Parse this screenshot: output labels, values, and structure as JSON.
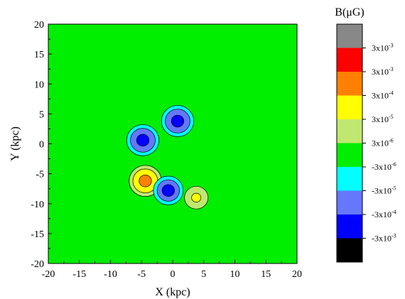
{
  "chart_data": {
    "type": "contour",
    "xlabel": "X (kpc)",
    "ylabel": "Y (kpc)",
    "xlim": [
      -20,
      20
    ],
    "ylim": [
      -20,
      20
    ],
    "xticks": [
      -20,
      -15,
      -10,
      -5,
      0,
      5,
      10,
      15,
      20
    ],
    "yticks": [
      -20,
      -15,
      -10,
      -5,
      0,
      5,
      10,
      15,
      20
    ],
    "background_color": "#00ee00",
    "colorbar": {
      "title": "B(μG)",
      "title_base": "B(",
      "title_mu": "μ",
      "title_rest": "G)",
      "levels": [
        {
          "color": "#888888"
        },
        {
          "color": "#ff0000",
          "label": "3x10-3"
        },
        {
          "color": "#ff8000",
          "label": "3x10-3"
        },
        {
          "color": "#ffff00",
          "label": "3x10-4"
        },
        {
          "color": "#c0e870",
          "label": "3x10-5"
        },
        {
          "color": "#00ee00",
          "label": "3x10-6"
        },
        {
          "color": "#00ffff",
          "label": "-3x10-6"
        },
        {
          "color": "#6677ff",
          "label": "-3x10-5"
        },
        {
          "color": "#0000ff",
          "label": "-3x10-4"
        },
        {
          "color": "#000000",
          "label": "-3x10-3"
        }
      ],
      "label_items": [
        {
          "base": "3x10",
          "exp": "-3"
        },
        {
          "base": "3x10",
          "exp": "-3"
        },
        {
          "base": "3x10",
          "exp": "-4"
        },
        {
          "base": "3x10",
          "exp": "-5"
        },
        {
          "base": "3x10",
          "exp": "-6"
        },
        {
          "base": "-3x10",
          "exp": "-6"
        },
        {
          "base": "-3x10",
          "exp": "-5"
        },
        {
          "base": "-3x10",
          "exp": "-4"
        },
        {
          "base": "-3x10",
          "exp": "-3"
        }
      ]
    },
    "features": [
      {
        "name": "negative-source-a",
        "x": 0.8,
        "y": 3.8,
        "rings": [
          {
            "r": 2.6,
            "color": "#00ffff"
          },
          {
            "r": 2.0,
            "color": "#6677ff"
          },
          {
            "r": 1.0,
            "color": "#0000ff"
          }
        ]
      },
      {
        "name": "negative-source-b",
        "x": -4.8,
        "y": 0.6,
        "rings": [
          {
            "r": 2.6,
            "color": "#00ffff"
          },
          {
            "r": 2.0,
            "color": "#6677ff"
          },
          {
            "r": 1.0,
            "color": "#0000ff"
          }
        ]
      },
      {
        "name": "positive-source-c",
        "x": -4.4,
        "y": -6.2,
        "rings": [
          {
            "r": 2.6,
            "color": "#c0e870"
          },
          {
            "r": 2.0,
            "color": "#ffff00"
          },
          {
            "r": 1.0,
            "color": "#ff8000"
          }
        ]
      },
      {
        "name": "negative-source-d",
        "x": -0.7,
        "y": -7.8,
        "rings": [
          {
            "r": 2.4,
            "color": "#00ffff"
          },
          {
            "r": 1.8,
            "color": "#6677ff"
          },
          {
            "r": 1.0,
            "color": "#0000ff"
          }
        ]
      },
      {
        "name": "positive-source-e",
        "x": 3.8,
        "y": -9.0,
        "rings": [
          {
            "r": 1.9,
            "color": "#c0e870"
          },
          {
            "r": 0.75,
            "color": "#ffff00"
          }
        ]
      }
    ]
  }
}
